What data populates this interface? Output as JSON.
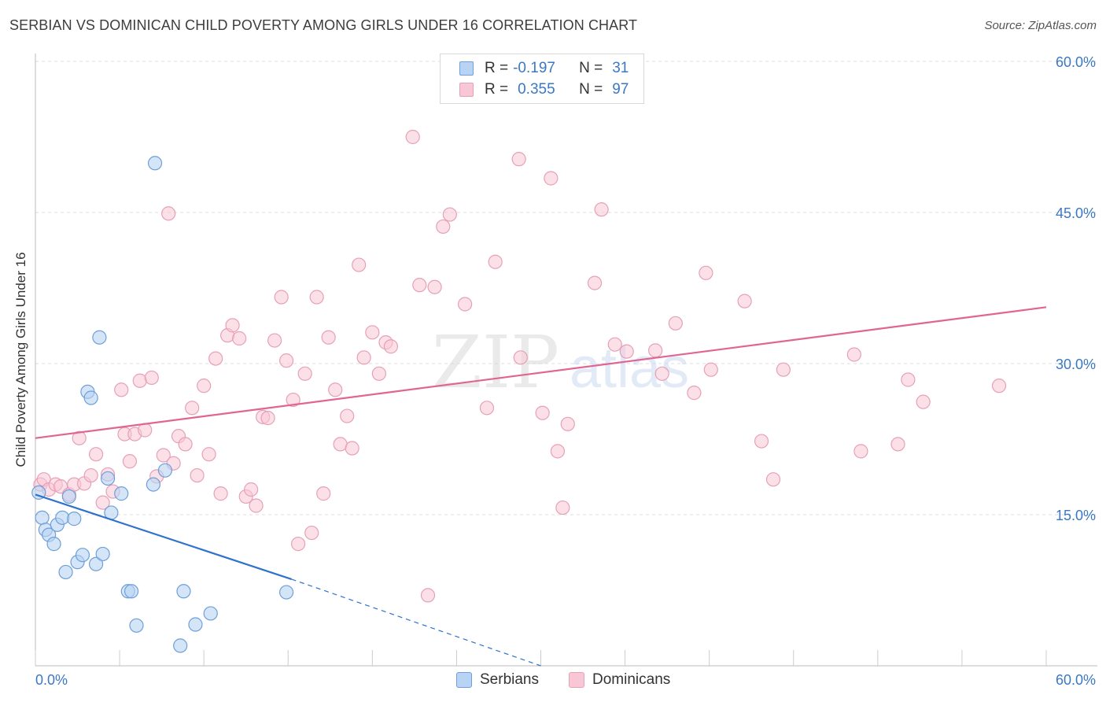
{
  "header": {
    "title": "SERBIAN VS DOMINICAN CHILD POVERTY AMONG GIRLS UNDER 16 CORRELATION CHART",
    "source": "Source: ZipAtlas.com"
  },
  "legend": {
    "rows": [
      {
        "r_label": "R =",
        "r_value": "-0.197",
        "n_label": "N =",
        "n_value": "31"
      },
      {
        "r_label": "R =",
        "r_value": "0.355",
        "n_label": "N =",
        "n_value": "97"
      }
    ],
    "bottom": [
      "Serbians",
      "Dominicans"
    ]
  },
  "colors": {
    "serbians_fill": "#b8d3f4",
    "serbians_stroke": "#6f9fd8",
    "serbians_line": "#2f72cc",
    "dominicans_fill": "#f9c6d5",
    "dominicans_stroke": "#e6a0b8",
    "dominicans_line": "#e06592",
    "axis_text": "#3b78c4",
    "grid": "#dddddd"
  },
  "chart_data": {
    "type": "scatter",
    "title": "SERBIAN VS DOMINICAN CHILD POVERTY AMONG GIRLS UNDER 16 CORRELATION CHART",
    "xlabel": "",
    "ylabel": "Child Poverty Among Girls Under 16",
    "xlim": [
      0,
      60
    ],
    "ylim": [
      0,
      60
    ],
    "x_tick_labels": [
      "0.0%",
      "60.0%"
    ],
    "y_tick_labels": [
      "15.0%",
      "30.0%",
      "45.0%",
      "60.0%"
    ],
    "y_ticks": [
      15,
      30,
      45,
      60
    ],
    "grid": true,
    "legend_position": "top-center",
    "watermark": "ZIPatlas",
    "series": [
      {
        "name": "Serbians",
        "r": -0.197,
        "n": 31,
        "trend": {
          "x0": 0,
          "y0": 17.0,
          "x1": 15.2,
          "y1": 8.6,
          "dashed_to_x": 30,
          "dashed_to_y": 0
        },
        "points": [
          [
            0.2,
            17.2
          ],
          [
            0.4,
            14.7
          ],
          [
            0.6,
            13.5
          ],
          [
            0.8,
            13.0
          ],
          [
            1.1,
            12.1
          ],
          [
            1.3,
            14.0
          ],
          [
            1.6,
            14.7
          ],
          [
            1.8,
            9.3
          ],
          [
            2.0,
            16.8
          ],
          [
            2.3,
            14.6
          ],
          [
            2.5,
            10.3
          ],
          [
            2.8,
            11.0
          ],
          [
            3.1,
            27.2
          ],
          [
            3.3,
            26.6
          ],
          [
            3.6,
            10.1
          ],
          [
            3.8,
            32.6
          ],
          [
            4.0,
            11.1
          ],
          [
            4.3,
            18.6
          ],
          [
            4.5,
            15.2
          ],
          [
            5.1,
            17.1
          ],
          [
            5.5,
            7.4
          ],
          [
            5.7,
            7.4
          ],
          [
            6.0,
            4.0
          ],
          [
            7.0,
            18.0
          ],
          [
            7.1,
            49.9
          ],
          [
            7.7,
            19.4
          ],
          [
            8.6,
            2.0
          ],
          [
            8.8,
            7.4
          ],
          [
            9.5,
            4.1
          ],
          [
            10.4,
            5.2
          ],
          [
            14.9,
            7.3
          ]
        ]
      },
      {
        "name": "Dominicans",
        "r": 0.355,
        "n": 97,
        "trend": {
          "x0": 0,
          "y0": 22.6,
          "x1": 60,
          "y1": 35.6
        },
        "points": [
          [
            0.3,
            18.0
          ],
          [
            0.5,
            18.5
          ],
          [
            0.8,
            17.5
          ],
          [
            1.2,
            18.0
          ],
          [
            1.5,
            17.8
          ],
          [
            2.0,
            17.0
          ],
          [
            2.3,
            18.0
          ],
          [
            2.6,
            22.6
          ],
          [
            2.9,
            18.1
          ],
          [
            3.3,
            18.9
          ],
          [
            3.6,
            21.0
          ],
          [
            4.0,
            16.2
          ],
          [
            4.3,
            19.0
          ],
          [
            4.6,
            17.3
          ],
          [
            5.1,
            27.4
          ],
          [
            5.3,
            23.0
          ],
          [
            5.6,
            20.3
          ],
          [
            5.9,
            23.0
          ],
          [
            6.2,
            28.3
          ],
          [
            6.5,
            23.4
          ],
          [
            6.9,
            28.6
          ],
          [
            7.2,
            18.8
          ],
          [
            7.6,
            20.9
          ],
          [
            7.9,
            44.9
          ],
          [
            8.2,
            20.1
          ],
          [
            8.5,
            22.8
          ],
          [
            8.9,
            22.0
          ],
          [
            9.3,
            25.6
          ],
          [
            9.6,
            18.9
          ],
          [
            10.0,
            27.8
          ],
          [
            10.3,
            21.0
          ],
          [
            10.7,
            30.5
          ],
          [
            11.0,
            17.1
          ],
          [
            11.4,
            32.8
          ],
          [
            11.7,
            33.8
          ],
          [
            12.1,
            32.5
          ],
          [
            12.5,
            16.8
          ],
          [
            12.8,
            17.5
          ],
          [
            13.1,
            15.9
          ],
          [
            13.5,
            24.7
          ],
          [
            13.8,
            24.6
          ],
          [
            14.2,
            32.3
          ],
          [
            14.6,
            36.6
          ],
          [
            14.9,
            30.3
          ],
          [
            15.3,
            26.4
          ],
          [
            15.6,
            12.1
          ],
          [
            16.0,
            29.0
          ],
          [
            16.4,
            13.2
          ],
          [
            16.7,
            36.6
          ],
          [
            17.1,
            17.1
          ],
          [
            17.4,
            32.6
          ],
          [
            17.8,
            27.4
          ],
          [
            18.1,
            22.0
          ],
          [
            18.5,
            24.8
          ],
          [
            18.8,
            21.6
          ],
          [
            19.2,
            39.8
          ],
          [
            19.5,
            30.6
          ],
          [
            20.0,
            33.1
          ],
          [
            20.4,
            29.0
          ],
          [
            20.8,
            32.1
          ],
          [
            21.1,
            31.7
          ],
          [
            22.4,
            52.5
          ],
          [
            22.8,
            37.8
          ],
          [
            23.3,
            7.0
          ],
          [
            23.7,
            37.6
          ],
          [
            24.2,
            43.6
          ],
          [
            24.6,
            44.8
          ],
          [
            25.5,
            35.9
          ],
          [
            26.8,
            25.6
          ],
          [
            27.3,
            40.1
          ],
          [
            28.7,
            50.3
          ],
          [
            28.8,
            30.6
          ],
          [
            30.1,
            25.1
          ],
          [
            30.6,
            48.4
          ],
          [
            31.0,
            21.3
          ],
          [
            31.3,
            15.7
          ],
          [
            31.6,
            24.0
          ],
          [
            33.2,
            38.0
          ],
          [
            33.6,
            45.3
          ],
          [
            34.4,
            31.9
          ],
          [
            35.1,
            31.2
          ],
          [
            36.8,
            31.3
          ],
          [
            37.2,
            29.0
          ],
          [
            38.0,
            34.0
          ],
          [
            39.1,
            27.1
          ],
          [
            39.8,
            39.0
          ],
          [
            40.1,
            29.4
          ],
          [
            42.1,
            36.2
          ],
          [
            43.1,
            22.3
          ],
          [
            43.8,
            18.5
          ],
          [
            44.4,
            29.4
          ],
          [
            48.6,
            30.9
          ],
          [
            49.0,
            21.3
          ],
          [
            51.2,
            22.0
          ],
          [
            51.8,
            28.4
          ],
          [
            52.7,
            26.2
          ],
          [
            57.2,
            27.8
          ]
        ]
      }
    ]
  }
}
